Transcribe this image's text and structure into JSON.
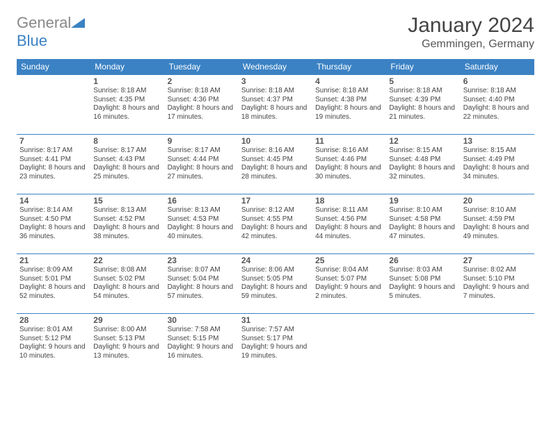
{
  "logo": {
    "textGray": "General",
    "textBlue": "Blue"
  },
  "header": {
    "title": "January 2024",
    "location": "Gemmingen, Germany"
  },
  "colors": {
    "headerBg": "#3b82c4",
    "headerText": "#ffffff",
    "border": "#3b82c4",
    "logoGray": "#888888",
    "logoBlue": "#3b82c4"
  },
  "weekdays": [
    "Sunday",
    "Monday",
    "Tuesday",
    "Wednesday",
    "Thursday",
    "Friday",
    "Saturday"
  ],
  "weeks": [
    [
      null,
      {
        "n": "1",
        "sr": "Sunrise: 8:18 AM",
        "ss": "Sunset: 4:35 PM",
        "dl": "Daylight: 8 hours and 16 minutes."
      },
      {
        "n": "2",
        "sr": "Sunrise: 8:18 AM",
        "ss": "Sunset: 4:36 PM",
        "dl": "Daylight: 8 hours and 17 minutes."
      },
      {
        "n": "3",
        "sr": "Sunrise: 8:18 AM",
        "ss": "Sunset: 4:37 PM",
        "dl": "Daylight: 8 hours and 18 minutes."
      },
      {
        "n": "4",
        "sr": "Sunrise: 8:18 AM",
        "ss": "Sunset: 4:38 PM",
        "dl": "Daylight: 8 hours and 19 minutes."
      },
      {
        "n": "5",
        "sr": "Sunrise: 8:18 AM",
        "ss": "Sunset: 4:39 PM",
        "dl": "Daylight: 8 hours and 21 minutes."
      },
      {
        "n": "6",
        "sr": "Sunrise: 8:18 AM",
        "ss": "Sunset: 4:40 PM",
        "dl": "Daylight: 8 hours and 22 minutes."
      }
    ],
    [
      {
        "n": "7",
        "sr": "Sunrise: 8:17 AM",
        "ss": "Sunset: 4:41 PM",
        "dl": "Daylight: 8 hours and 23 minutes."
      },
      {
        "n": "8",
        "sr": "Sunrise: 8:17 AM",
        "ss": "Sunset: 4:43 PM",
        "dl": "Daylight: 8 hours and 25 minutes."
      },
      {
        "n": "9",
        "sr": "Sunrise: 8:17 AM",
        "ss": "Sunset: 4:44 PM",
        "dl": "Daylight: 8 hours and 27 minutes."
      },
      {
        "n": "10",
        "sr": "Sunrise: 8:16 AM",
        "ss": "Sunset: 4:45 PM",
        "dl": "Daylight: 8 hours and 28 minutes."
      },
      {
        "n": "11",
        "sr": "Sunrise: 8:16 AM",
        "ss": "Sunset: 4:46 PM",
        "dl": "Daylight: 8 hours and 30 minutes."
      },
      {
        "n": "12",
        "sr": "Sunrise: 8:15 AM",
        "ss": "Sunset: 4:48 PM",
        "dl": "Daylight: 8 hours and 32 minutes."
      },
      {
        "n": "13",
        "sr": "Sunrise: 8:15 AM",
        "ss": "Sunset: 4:49 PM",
        "dl": "Daylight: 8 hours and 34 minutes."
      }
    ],
    [
      {
        "n": "14",
        "sr": "Sunrise: 8:14 AM",
        "ss": "Sunset: 4:50 PM",
        "dl": "Daylight: 8 hours and 36 minutes."
      },
      {
        "n": "15",
        "sr": "Sunrise: 8:13 AM",
        "ss": "Sunset: 4:52 PM",
        "dl": "Daylight: 8 hours and 38 minutes."
      },
      {
        "n": "16",
        "sr": "Sunrise: 8:13 AM",
        "ss": "Sunset: 4:53 PM",
        "dl": "Daylight: 8 hours and 40 minutes."
      },
      {
        "n": "17",
        "sr": "Sunrise: 8:12 AM",
        "ss": "Sunset: 4:55 PM",
        "dl": "Daylight: 8 hours and 42 minutes."
      },
      {
        "n": "18",
        "sr": "Sunrise: 8:11 AM",
        "ss": "Sunset: 4:56 PM",
        "dl": "Daylight: 8 hours and 44 minutes."
      },
      {
        "n": "19",
        "sr": "Sunrise: 8:10 AM",
        "ss": "Sunset: 4:58 PM",
        "dl": "Daylight: 8 hours and 47 minutes."
      },
      {
        "n": "20",
        "sr": "Sunrise: 8:10 AM",
        "ss": "Sunset: 4:59 PM",
        "dl": "Daylight: 8 hours and 49 minutes."
      }
    ],
    [
      {
        "n": "21",
        "sr": "Sunrise: 8:09 AM",
        "ss": "Sunset: 5:01 PM",
        "dl": "Daylight: 8 hours and 52 minutes."
      },
      {
        "n": "22",
        "sr": "Sunrise: 8:08 AM",
        "ss": "Sunset: 5:02 PM",
        "dl": "Daylight: 8 hours and 54 minutes."
      },
      {
        "n": "23",
        "sr": "Sunrise: 8:07 AM",
        "ss": "Sunset: 5:04 PM",
        "dl": "Daylight: 8 hours and 57 minutes."
      },
      {
        "n": "24",
        "sr": "Sunrise: 8:06 AM",
        "ss": "Sunset: 5:05 PM",
        "dl": "Daylight: 8 hours and 59 minutes."
      },
      {
        "n": "25",
        "sr": "Sunrise: 8:04 AM",
        "ss": "Sunset: 5:07 PM",
        "dl": "Daylight: 9 hours and 2 minutes."
      },
      {
        "n": "26",
        "sr": "Sunrise: 8:03 AM",
        "ss": "Sunset: 5:08 PM",
        "dl": "Daylight: 9 hours and 5 minutes."
      },
      {
        "n": "27",
        "sr": "Sunrise: 8:02 AM",
        "ss": "Sunset: 5:10 PM",
        "dl": "Daylight: 9 hours and 7 minutes."
      }
    ],
    [
      {
        "n": "28",
        "sr": "Sunrise: 8:01 AM",
        "ss": "Sunset: 5:12 PM",
        "dl": "Daylight: 9 hours and 10 minutes."
      },
      {
        "n": "29",
        "sr": "Sunrise: 8:00 AM",
        "ss": "Sunset: 5:13 PM",
        "dl": "Daylight: 9 hours and 13 minutes."
      },
      {
        "n": "30",
        "sr": "Sunrise: 7:58 AM",
        "ss": "Sunset: 5:15 PM",
        "dl": "Daylight: 9 hours and 16 minutes."
      },
      {
        "n": "31",
        "sr": "Sunrise: 7:57 AM",
        "ss": "Sunset: 5:17 PM",
        "dl": "Daylight: 9 hours and 19 minutes."
      },
      null,
      null,
      null
    ]
  ]
}
